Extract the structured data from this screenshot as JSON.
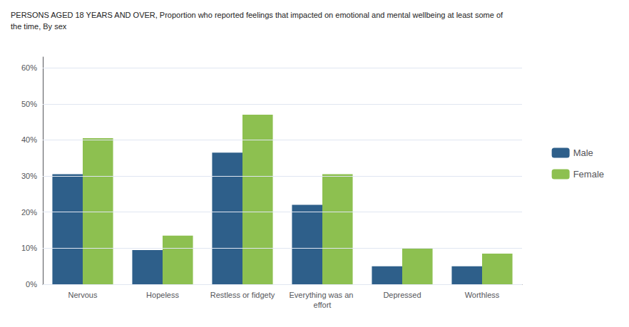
{
  "chart_data": {
    "type": "bar",
    "title": "PERSONS AGED 18 YEARS AND OVER, Proportion who reported feelings that impacted on emotional and mental wellbeing at least some of\nthe time, By sex",
    "categories": [
      "Nervous",
      "Hopeless",
      "Restless or fidgety",
      "Everything was an effort",
      "Depressed",
      "Worthless"
    ],
    "series": [
      {
        "name": "Male",
        "color": "#2E5F8A",
        "values": [
          30.5,
          9.5,
          36.5,
          22.0,
          5.0,
          5.0
        ]
      },
      {
        "name": "Female",
        "color": "#8DC050",
        "values": [
          40.5,
          13.5,
          47.0,
          30.5,
          10.0,
          8.5
        ]
      }
    ],
    "ylim": [
      0,
      63
    ],
    "yticks": [
      {
        "value": 0,
        "label": "0%"
      },
      {
        "value": 10,
        "label": "10%"
      },
      {
        "value": 20,
        "label": "20%"
      },
      {
        "value": 30,
        "label": "30%"
      },
      {
        "value": 40,
        "label": "40%"
      },
      {
        "value": 50,
        "label": "50%"
      },
      {
        "value": 60,
        "label": "60%"
      }
    ],
    "grid": true,
    "legend": "right"
  }
}
